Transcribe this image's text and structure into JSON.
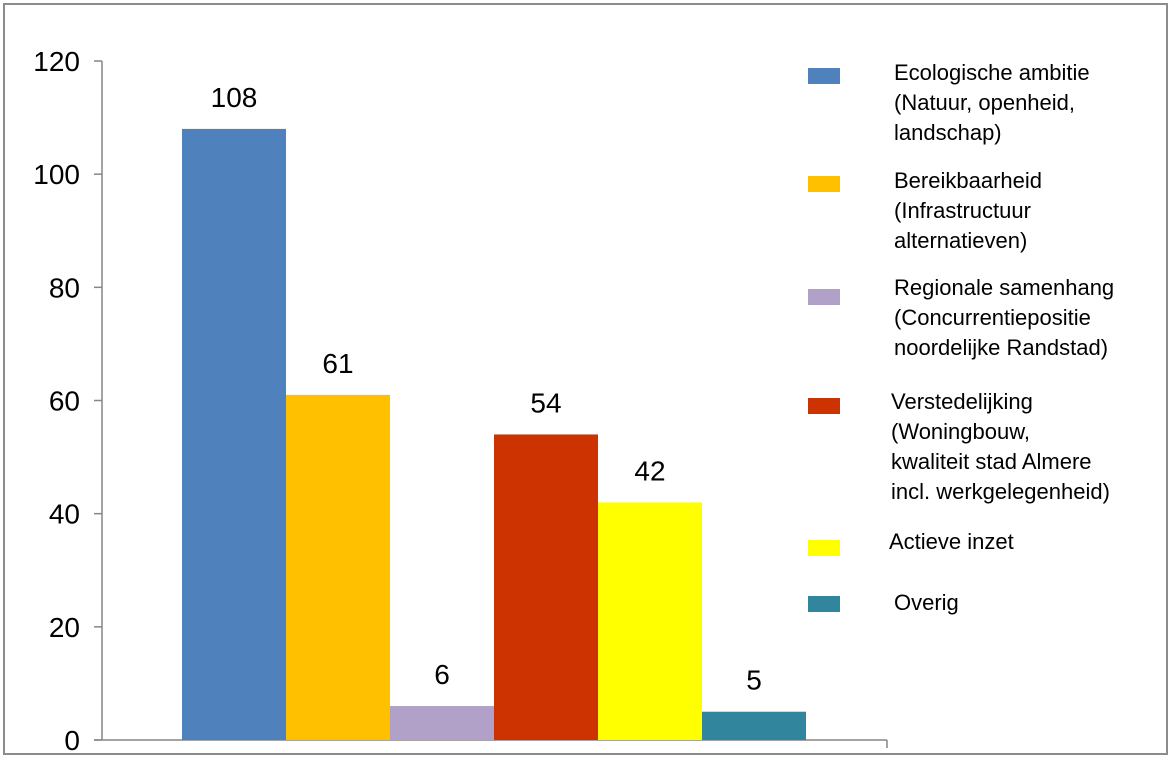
{
  "chart_data": {
    "type": "bar",
    "title": "",
    "xlabel": "",
    "ylabel": "",
    "ylim": [
      0,
      120
    ],
    "yticks": [
      "0",
      "20",
      "40",
      "60",
      "80",
      "100",
      "120"
    ],
    "grid": false,
    "legend_position": "right",
    "categories": [
      "Ecologische ambitie\n(Natuur, openheid,\nlandschap)",
      "Bereikbaarheid\n(Infrastructuur\nalternatieven)",
      "Regionale samenhang\n(Concurrentiepositie\nnoordelijke Randstad)",
      "Verstedelijking\n(Woningbouw,\nkwaliteit stad Almere\nincl. werkgelegenheid)",
      "Actieve inzet",
      "Overig"
    ],
    "values": [
      108,
      61,
      6,
      54,
      42,
      5
    ],
    "data_labels": [
      "108",
      "61",
      "6",
      "54",
      "42",
      "5"
    ],
    "colors": [
      "#4F81BD",
      "#FFC000",
      "#B1A0C7",
      "#CC3300",
      "#FFFF00",
      "#31859C"
    ]
  }
}
